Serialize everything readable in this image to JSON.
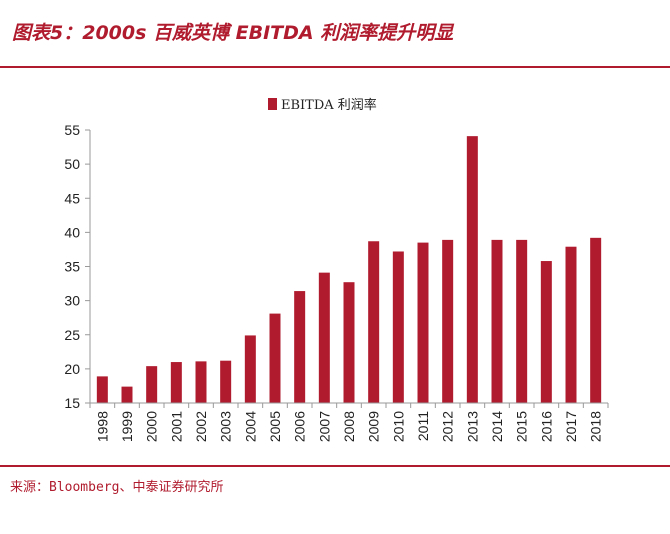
{
  "header": {
    "title": "图表5：2000s 百威英博 EBITDA 利润率提升明显"
  },
  "footer": {
    "source": "来源：Bloomberg、中泰证券研究所"
  },
  "colors": {
    "accent": "#b01c2e",
    "bar": "#b01c2e",
    "axis": "#999999"
  },
  "chart_data": {
    "type": "bar",
    "title": "",
    "xlabel": "",
    "ylabel": "",
    "legend_position": "top",
    "grid": false,
    "ylim": [
      15,
      55
    ],
    "yticks": [
      15,
      20,
      25,
      30,
      35,
      40,
      45,
      50,
      55
    ],
    "categories": [
      "1998",
      "1999",
      "2000",
      "2001",
      "2002",
      "2003",
      "2004",
      "2005",
      "2006",
      "2007",
      "2008",
      "2009",
      "2010",
      "2011",
      "2012",
      "2013",
      "2014",
      "2015",
      "2016",
      "2017",
      "2018"
    ],
    "series": [
      {
        "name": "EBITDA 利润率",
        "values": [
          18.9,
          17.4,
          20.4,
          21.0,
          21.1,
          21.2,
          24.9,
          28.1,
          31.4,
          34.1,
          32.7,
          38.7,
          37.2,
          38.5,
          38.9,
          54.1,
          38.9,
          38.9,
          35.8,
          37.9,
          39.2
        ]
      }
    ]
  }
}
